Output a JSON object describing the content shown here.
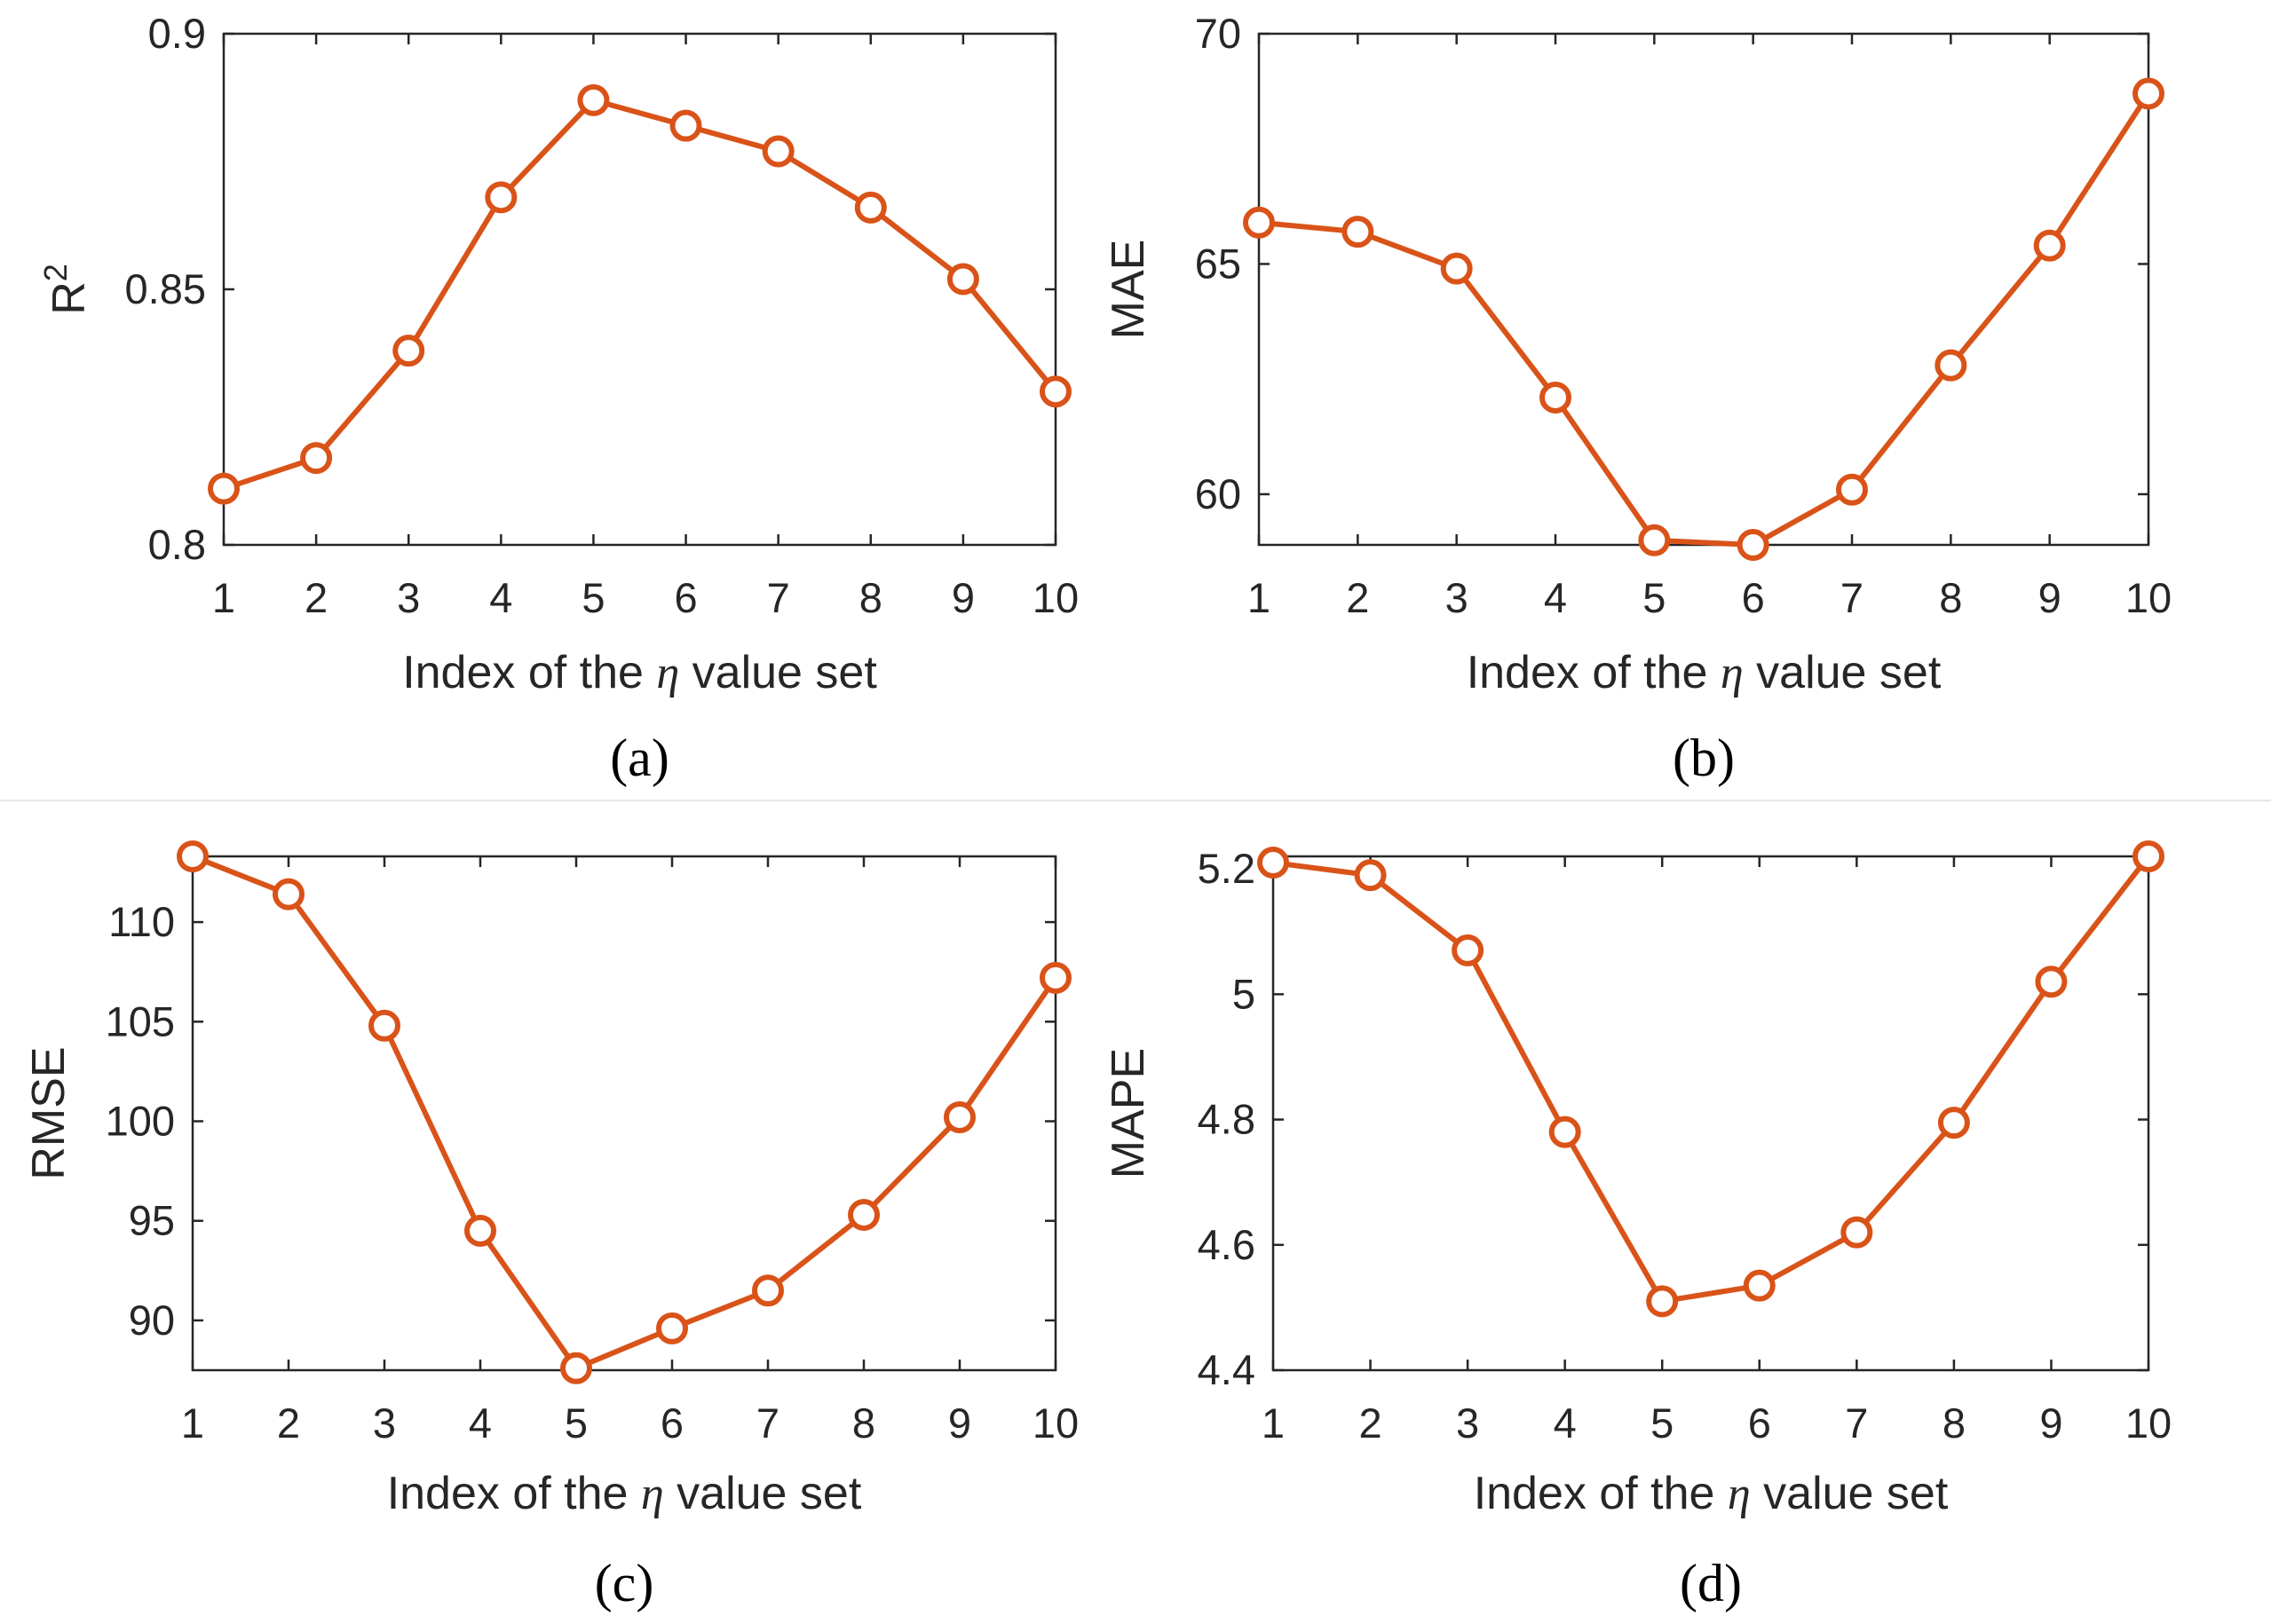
{
  "colors": {
    "series": "#d95319",
    "axis": "#262626",
    "divider": "#e6e6e6"
  },
  "chart_data": [
    {
      "type": "line",
      "panel": "(a)",
      "xlabel_prefix": "Index of the",
      "xlabel_symbol": "η",
      "xlabel_suffix": "value set",
      "ylabel": "R",
      "ylabel_sup": "2",
      "x": [
        1,
        2,
        3,
        4,
        5,
        6,
        7,
        8,
        9,
        10
      ],
      "values": [
        0.811,
        0.817,
        0.838,
        0.868,
        0.887,
        0.882,
        0.877,
        0.866,
        0.852,
        0.83
      ],
      "xlim": [
        1,
        10
      ],
      "ylim": [
        0.8,
        0.9
      ],
      "xticks": [
        "1",
        "2",
        "3",
        "4",
        "5",
        "6",
        "7",
        "8",
        "9",
        "10"
      ],
      "yticks": [
        0.8,
        0.85,
        0.9
      ],
      "ytick_labels": [
        "0.8",
        "0.85",
        "0.9"
      ],
      "marker": "circle"
    },
    {
      "type": "line",
      "panel": "(b)",
      "xlabel_prefix": "Index of the",
      "xlabel_symbol": "η",
      "xlabel_suffix": "value set",
      "ylabel": "MAE",
      "ylabel_sup": "",
      "x": [
        1,
        2,
        3,
        4,
        5,
        6,
        7,
        8,
        9,
        10
      ],
      "values": [
        65.9,
        65.7,
        64.9,
        62.1,
        59.0,
        58.9,
        60.1,
        62.8,
        65.4,
        68.7
      ],
      "xlim": [
        1,
        10
      ],
      "ylim": [
        58.9,
        70
      ],
      "xticks": [
        "1",
        "2",
        "3",
        "4",
        "5",
        "6",
        "7",
        "8",
        "9",
        "10"
      ],
      "yticks": [
        60,
        65,
        70
      ],
      "ytick_labels": [
        "60",
        "65",
        "70"
      ],
      "marker": "circle"
    },
    {
      "type": "line",
      "panel": "(c)",
      "xlabel_prefix": "Index of the",
      "xlabel_symbol": "η",
      "xlabel_suffix": "value set",
      "ylabel": "RMSE",
      "ylabel_sup": "",
      "x": [
        1,
        2,
        3,
        4,
        5,
        6,
        7,
        8,
        9,
        10
      ],
      "values": [
        113.3,
        111.4,
        104.8,
        94.5,
        87.6,
        89.6,
        91.5,
        95.3,
        100.2,
        107.2
      ],
      "xlim": [
        1,
        10
      ],
      "ylim": [
        87.5,
        113.3
      ],
      "xticks": [
        "1",
        "2",
        "3",
        "4",
        "5",
        "6",
        "7",
        "8",
        "9",
        "10"
      ],
      "yticks": [
        90,
        95,
        100,
        105,
        110
      ],
      "ytick_labels": [
        "90",
        "95",
        "100",
        "105",
        "110"
      ],
      "marker": "circle"
    },
    {
      "type": "line",
      "panel": "(d)",
      "xlabel_prefix": "Index of the",
      "xlabel_symbol": "η",
      "xlabel_suffix": "value set",
      "ylabel": "MAPE",
      "ylabel_sup": "",
      "x": [
        1,
        2,
        3,
        4,
        5,
        6,
        7,
        8,
        9,
        10
      ],
      "values": [
        5.21,
        5.19,
        5.07,
        4.78,
        4.51,
        4.535,
        4.62,
        4.795,
        5.02,
        5.22
      ],
      "xlim": [
        1,
        10
      ],
      "ylim": [
        4.4,
        5.22
      ],
      "xticks": [
        "1",
        "2",
        "3",
        "4",
        "5",
        "6",
        "7",
        "8",
        "9",
        "10"
      ],
      "yticks": [
        4.4,
        4.6,
        4.8,
        5.0,
        5.2
      ],
      "ytick_labels": [
        "4.4",
        "4.6",
        "4.8",
        "5",
        "5.2"
      ],
      "marker": "circle"
    }
  ]
}
